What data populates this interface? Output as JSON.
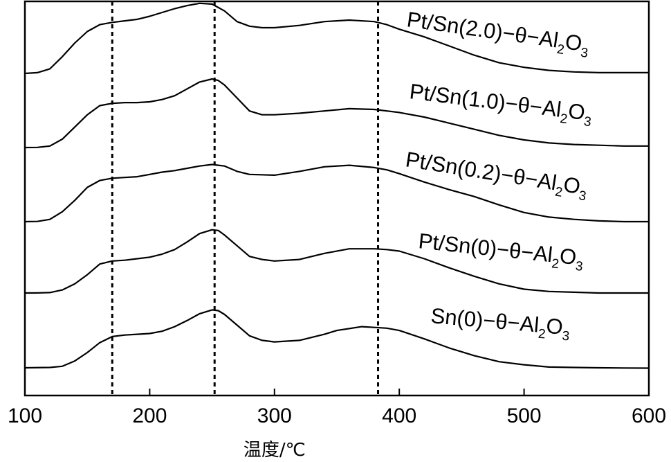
{
  "chart_data": {
    "type": "line",
    "xlabel": "温度/℃",
    "ylabel": "",
    "xlim": [
      100,
      600
    ],
    "x_ticks": [
      100,
      200,
      300,
      400,
      500,
      600
    ],
    "x_tick_labels": [
      "100",
      "200",
      "300",
      "400",
      "500",
      "600"
    ],
    "reference_lines_x": [
      170,
      252,
      383
    ],
    "grid": false,
    "legend": "none",
    "y_axis_visible": false,
    "series_labels": [
      {
        "prefix": "Sn(0)−θ−Al",
        "sub1": "2",
        "mid": "O",
        "sub2": "3"
      },
      {
        "prefix": "Pt/Sn(0)−θ−Al",
        "sub1": "2",
        "mid": "O",
        "sub2": "3"
      },
      {
        "prefix": "Pt/Sn(0.2)−θ−Al",
        "sub1": "2",
        "mid": "O",
        "sub2": "3"
      },
      {
        "prefix": "Pt/Sn(1.0)−θ−Al",
        "sub1": "2",
        "mid": "O",
        "sub2": "3"
      },
      {
        "prefix": "Pt/Sn(2.0)−θ−Al",
        "sub1": "2",
        "mid": "O",
        "sub2": "3"
      }
    ],
    "series": [
      {
        "x": [
          100,
          120,
          130,
          140,
          150,
          160,
          170,
          180,
          190,
          200,
          210,
          220,
          230,
          240,
          250,
          255,
          260,
          270,
          280,
          290,
          300,
          320,
          340,
          350,
          370,
          380,
          390,
          400,
          420,
          440,
          460,
          480,
          500,
          520,
          540,
          560,
          580,
          600
        ],
        "y": [
          0.0,
          0.5,
          2,
          9,
          20,
          33,
          41,
          43,
          44,
          45,
          48,
          54,
          62,
          71,
          76,
          75,
          70,
          56,
          42,
          36,
          34,
          36,
          44,
          49,
          54,
          53,
          52,
          49,
          38,
          26,
          16,
          8,
          4,
          1,
          0.5,
          0,
          -0.3,
          -0.5
        ]
      },
      {
        "x": [
          100,
          110,
          120,
          130,
          140,
          150,
          160,
          170,
          180,
          190,
          200,
          210,
          220,
          230,
          240,
          250,
          255,
          260,
          270,
          280,
          290,
          300,
          320,
          340,
          360,
          380,
          390,
          400,
          420,
          440,
          460,
          480,
          500,
          520,
          540,
          560,
          580,
          600
        ],
        "y": [
          0.0,
          0.1,
          0.5,
          4,
          12,
          24,
          38,
          42,
          43,
          45,
          47,
          51,
          57,
          67,
          78,
          83,
          82,
          76,
          62,
          48,
          44,
          42,
          44,
          52,
          58,
          58,
          57,
          55,
          45,
          33,
          22,
          12,
          5,
          2,
          1,
          0,
          0,
          0
        ]
      },
      {
        "x": [
          100,
          110,
          120,
          130,
          140,
          150,
          160,
          170,
          180,
          190,
          200,
          210,
          220,
          230,
          240,
          250,
          255,
          260,
          270,
          280,
          300,
          320,
          340,
          360,
          380,
          390,
          400,
          420,
          440,
          460,
          480,
          500,
          520,
          540,
          560,
          580,
          600
        ],
        "y": [
          0.0,
          0.3,
          3,
          13,
          28,
          45,
          54,
          57,
          58,
          59,
          62,
          65,
          67,
          70,
          73,
          75,
          74,
          73,
          66,
          62,
          61,
          66,
          72,
          74,
          71,
          68,
          63,
          52,
          42,
          33,
          22,
          12,
          6,
          3,
          1,
          0,
          0
        ]
      },
      {
        "x": [
          100,
          110,
          120,
          130,
          140,
          150,
          160,
          170,
          180,
          190,
          200,
          210,
          220,
          230,
          240,
          250,
          255,
          260,
          270,
          280,
          290,
          300,
          320,
          340,
          360,
          380,
          390,
          400,
          420,
          440,
          460,
          480,
          500,
          520,
          540,
          560,
          580,
          600
        ],
        "y": [
          0.0,
          0.2,
          2,
          11,
          27,
          43,
          55,
          58,
          59,
          59,
          60,
          63,
          68,
          77,
          86,
          90,
          88,
          82,
          65,
          48,
          43,
          43,
          45,
          48,
          51,
          50,
          48,
          46,
          40,
          32,
          24,
          16,
          10,
          6,
          4,
          3,
          2,
          2
        ]
      },
      {
        "x": [
          100,
          110,
          120,
          130,
          140,
          150,
          160,
          170,
          180,
          190,
          200,
          210,
          220,
          230,
          240,
          250,
          260,
          270,
          280,
          290,
          300,
          320,
          340,
          360,
          380,
          390,
          400,
          420,
          440,
          460,
          480,
          500,
          520,
          540,
          560,
          580,
          600
        ],
        "y": [
          0.0,
          1,
          6,
          22,
          40,
          55,
          64,
          67,
          69,
          71,
          75,
          80,
          85,
          89,
          92,
          91,
          82,
          68,
          62,
          60,
          60,
          63,
          68,
          70,
          68,
          64,
          58,
          48,
          36,
          24,
          14,
          8,
          4,
          2,
          1,
          1,
          1
        ]
      }
    ]
  }
}
